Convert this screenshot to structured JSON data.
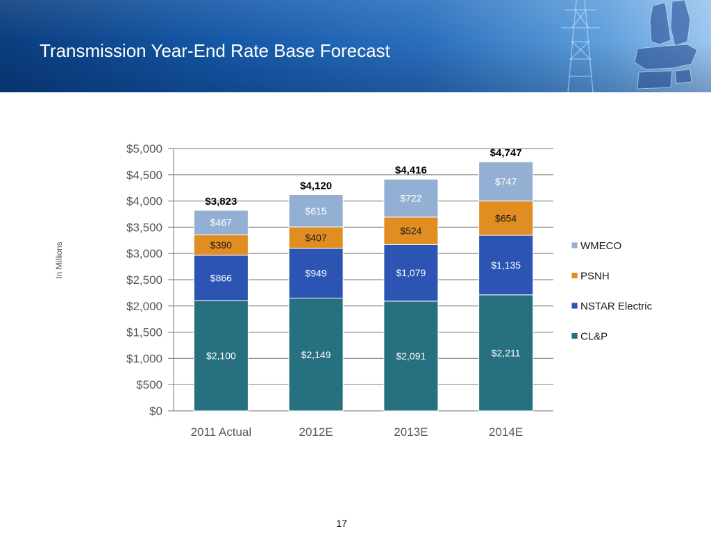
{
  "slide": {
    "title": "Transmission Year-End Rate Base Forecast",
    "page_number": "17"
  },
  "colors": {
    "banner_dark": "#0a3d7e",
    "banner_light": "#9cc6ee",
    "title_text": "#ffffff"
  },
  "chart_data": {
    "type": "bar",
    "stacked": true,
    "title": "",
    "xlabel": "",
    "ylabel": "In Millions",
    "ylim": [
      0,
      5000
    ],
    "yticks": [
      0,
      500,
      1000,
      1500,
      2000,
      2500,
      3000,
      3500,
      4000,
      4500,
      5000
    ],
    "ytick_labels": [
      "$0",
      "$500",
      "$1,000",
      "$1,500",
      "$2,000",
      "$2,500",
      "$3,000",
      "$3,500",
      "$4,000",
      "$4,500",
      "$5,000"
    ],
    "categories": [
      "2011 Actual",
      "2012E",
      "2013E",
      "2014E"
    ],
    "series": [
      {
        "name": "CL&P",
        "color": "#26707f",
        "label_color": "#ffffff",
        "values": [
          2100,
          2149,
          2091,
          2211
        ],
        "labels": [
          "$2,100",
          "$2,149",
          "$2,091",
          "$2,211"
        ]
      },
      {
        "name": "NSTAR Electric",
        "color": "#2b54b3",
        "label_color": "#ffffff",
        "values": [
          866,
          949,
          1079,
          1135
        ],
        "labels": [
          "$866",
          "$949",
          "$1,079",
          "$1,135"
        ]
      },
      {
        "name": "PSNH",
        "color": "#e08e21",
        "label_color": "#1a1a1a",
        "values": [
          390,
          407,
          524,
          654
        ],
        "labels": [
          "$390",
          "$407",
          "$524",
          "$654"
        ]
      },
      {
        "name": "WMECO",
        "color": "#93b0d4",
        "label_color": "#ffffff",
        "values": [
          467,
          615,
          722,
          747
        ],
        "labels": [
          "$467",
          "$615",
          "$722",
          "$747"
        ]
      }
    ],
    "totals": [
      3823,
      4120,
      4416,
      4747
    ],
    "total_labels": [
      "$3,823",
      "$4,120",
      "$4,416",
      "$4,747"
    ],
    "legend": {
      "position": "right",
      "order": [
        "WMECO",
        "PSNH",
        "NSTAR Electric",
        "CL&P"
      ]
    },
    "grid": true
  }
}
